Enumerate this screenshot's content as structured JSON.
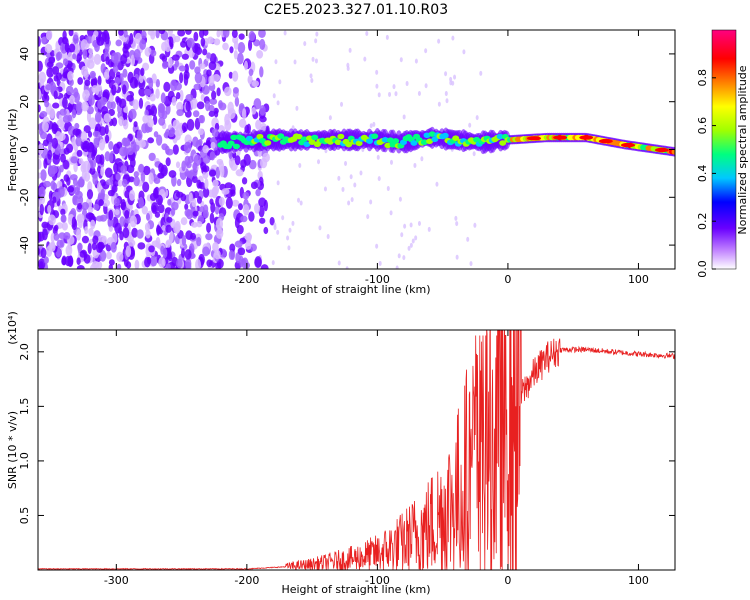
{
  "title": "C2E5.2023.327.01.10.R03",
  "chart_data": [
    {
      "type": "heatmap",
      "xlabel": "Height of straight line (km)",
      "ylabel": "Frequency (Hz)",
      "xlim": [
        -360,
        128
      ],
      "ylim": [
        -50,
        50
      ],
      "xticks": [
        -300,
        -200,
        -100,
        0,
        100
      ],
      "yticks": [
        -40,
        -20,
        0,
        20,
        40
      ],
      "xtick_labels": [
        "-300",
        "-200",
        "-100",
        "0",
        "100"
      ],
      "ytick_labels": [
        "-40",
        "-20",
        "0",
        "20",
        "40"
      ],
      "colorbar": {
        "label": "Normalized spectral amplitude",
        "range": [
          0,
          1
        ],
        "ticks": [
          "0.0",
          "0.2",
          "0.4",
          "0.6",
          "0.8"
        ],
        "colormap": [
          "#ffffff",
          "#c080ff",
          "#6a00ff",
          "#0000ff",
          "#00c8ff",
          "#00ff80",
          "#a0ff00",
          "#ffff00",
          "#ff8000",
          "#ff0000",
          "#ff0080"
        ]
      },
      "signal_track": [
        {
          "x": -220,
          "y": 3
        },
        {
          "x": -180,
          "y": 4
        },
        {
          "x": -140,
          "y": 4
        },
        {
          "x": -100,
          "y": 4
        },
        {
          "x": -80,
          "y": 3
        },
        {
          "x": -60,
          "y": 5
        },
        {
          "x": -40,
          "y": 4
        },
        {
          "x": -20,
          "y": 3
        },
        {
          "x": 0,
          "y": 4
        },
        {
          "x": 30,
          "y": 5
        },
        {
          "x": 60,
          "y": 5
        },
        {
          "x": 90,
          "y": 2
        },
        {
          "x": 128,
          "y": -1
        }
      ]
    },
    {
      "type": "line",
      "xlabel": "Height of straight line (km)",
      "ylabel": "SNR (10 * v/v)",
      "y_multiplier": "(x10⁴)",
      "xlim": [
        -360,
        128
      ],
      "ylim": [
        0,
        2.2
      ],
      "xticks": [
        -300,
        -200,
        -100,
        0,
        100
      ],
      "yticks": [
        0.5,
        1.0,
        1.5,
        2.0
      ],
      "xtick_labels": [
        "-300",
        "-200",
        "-100",
        "0",
        "100"
      ],
      "ytick_labels": [
        "0.5",
        "1.0",
        "1.5",
        "2.0"
      ],
      "color": "#e82020",
      "series": [
        {
          "x": [
            -360,
            -300,
            -250,
            -200,
            -170,
            -150,
            -120,
            -100,
            -80,
            -60,
            -40,
            -30,
            -20,
            -10,
            0,
            10,
            20,
            30,
            40,
            60,
            80,
            100,
            128
          ],
          "values": [
            0.01,
            0.01,
            0.01,
            0.01,
            0.03,
            0.05,
            0.1,
            0.15,
            0.25,
            0.4,
            0.65,
            0.9,
            1.0,
            1.1,
            1.35,
            1.6,
            1.8,
            1.95,
            2.02,
            2.02,
            2.0,
            1.98,
            1.96
          ]
        }
      ]
    }
  ]
}
